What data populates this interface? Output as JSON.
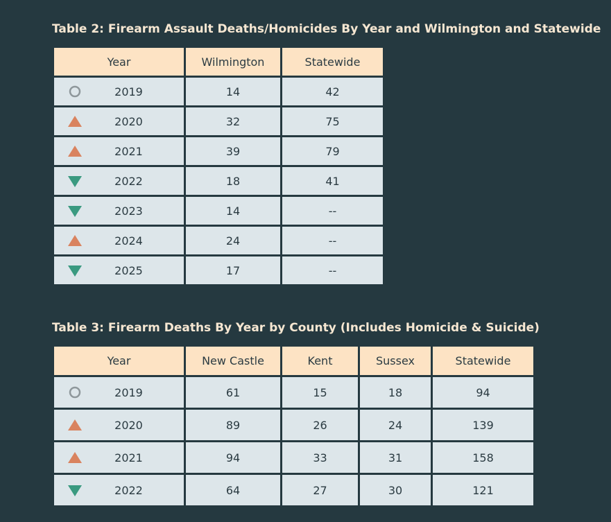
{
  "table2": {
    "title": "Table 2: Firearm Assault Deaths/Homicides By Year and Wilmington and Statewide",
    "header": [
      "Year",
      "Wilmington",
      "Statewide"
    ],
    "rows": [
      [
        "2019",
        "14",
        "42"
      ],
      [
        "2020",
        "32",
        "75"
      ],
      [
        "2021",
        "39",
        "79"
      ],
      [
        "2022",
        "18",
        "41"
      ],
      [
        "2023",
        "14",
        "--"
      ],
      [
        "2024",
        "24",
        "--"
      ],
      [
        "2025",
        "17",
        "--"
      ]
    ]
  },
  "table3": {
    "title": "Table 3: Firearm Deaths By Year by County (Includes Homicide & Suicide)",
    "header": [
      "Year",
      "New Castle",
      "Kent",
      "Sussex",
      "Statewide"
    ],
    "rows": [
      [
        "2019",
        "61",
        "15",
        "18",
        "94"
      ],
      [
        "2020",
        "89",
        "26",
        "24",
        "139"
      ],
      [
        "2021",
        "94",
        "33",
        "31",
        "158"
      ],
      [
        "2022",
        "64",
        "27",
        "30",
        "121"
      ]
    ]
  }
}
